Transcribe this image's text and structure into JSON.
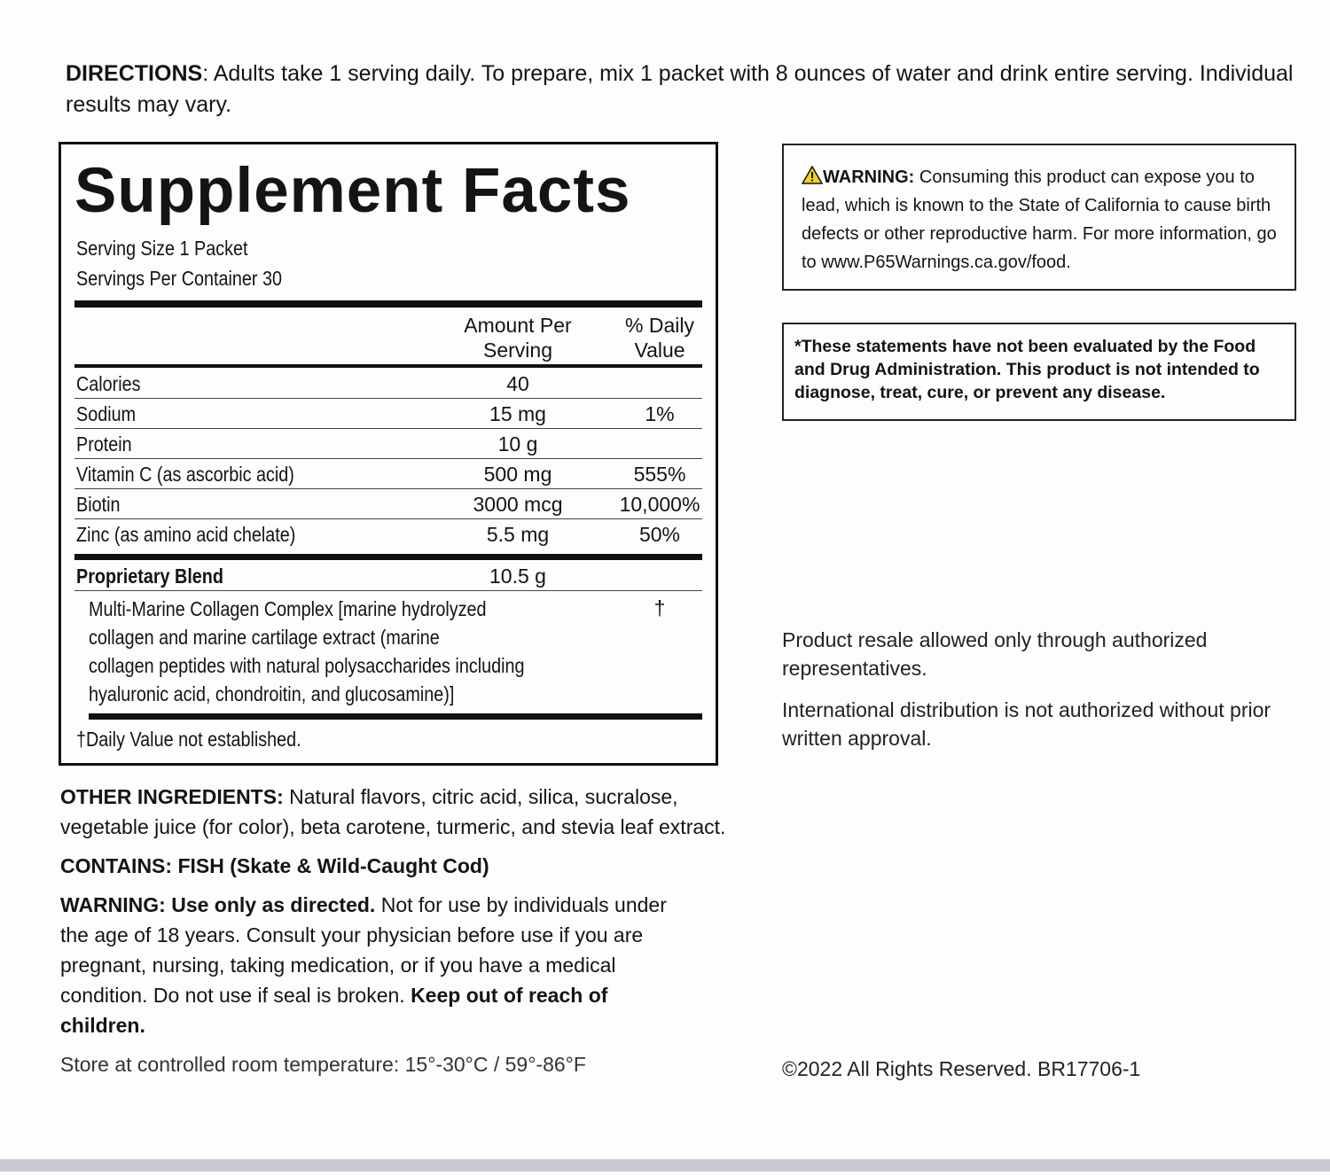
{
  "directions": {
    "label": "DIRECTIONS",
    "text": ": Adults take 1 serving daily. To prepare, mix 1 packet with 8 ounces of water and drink entire serving. Individual results may vary."
  },
  "supplement_facts": {
    "title": "Supplement Facts",
    "serving_size": "Serving Size 1 Packet",
    "servings_per_container": "Servings Per Container 30",
    "col_amount_1": "Amount Per",
    "col_amount_2": "Serving",
    "col_dv_1": "% Daily",
    "col_dv_2": "Value",
    "rows": [
      {
        "name": "Calories",
        "amount": "40",
        "dv": ""
      },
      {
        "name": "Sodium",
        "amount": "15 mg",
        "dv": "1%"
      },
      {
        "name": "Protein",
        "amount": "10 g",
        "dv": ""
      },
      {
        "name": "Vitamin C (as ascorbic acid)",
        "amount": "500 mg",
        "dv": "555%"
      },
      {
        "name": "Biotin",
        "amount": "3000 mcg",
        "dv": "10,000%"
      },
      {
        "name": "Zinc (as amino acid chelate)",
        "amount": "5.5 mg",
        "dv": "50%"
      }
    ],
    "blend": {
      "name": "Proprietary Blend",
      "amount": "10.5 g",
      "dv": "†",
      "lines": [
        "Multi-Marine Collagen Complex [marine hydrolyzed",
        "collagen and marine cartilage extract (marine",
        "collagen peptides with natural polysaccharides including",
        "hyaluronic acid, chondroitin, and glucosamine)]"
      ]
    },
    "footnote": "†Daily Value not established."
  },
  "other_ingredients": {
    "label": "OTHER INGREDIENTS:",
    "text": " Natural flavors, citric acid, silica, sucralose, vegetable juice (for color), beta carotene, turmeric, and stevia leaf extract."
  },
  "contains": "CONTAINS: FISH (Skate & Wild-Caught Cod)",
  "warning": {
    "bold1": "WARNING: Use only as directed.",
    "text": " Not for use by individuals under the age of 18 years. Consult your physician before use if you are pregnant, nursing, taking medication, or if you have a medical condition. Do not use if seal is broken. ",
    "bold2": "Keep out of reach of children."
  },
  "storage": "Store at controlled room temperature: 15°-30°C / 59°-86°F",
  "p65": {
    "icon": "warning-triangle-icon",
    "label": "WARNING:",
    "text": " Consuming this product can expose you to lead, which is known to the State of California to cause birth defects or other reproductive harm. For more information, go to www.P65Warnings.ca.gov/food."
  },
  "fda": "*These statements have not been evaluated by the Food and Drug Administration. This product is not intended to diagnose, treat, cure, or prevent any disease.",
  "resale": "Product resale allowed only through authorized representatives.",
  "international": "International distribution is not authorized without prior written approval.",
  "copyright": "©2022 All Rights Reserved. BR17706-1",
  "colors": {
    "warning_icon": "#f2d21b",
    "text": "#141414",
    "stripe": "#c9c9d3"
  }
}
